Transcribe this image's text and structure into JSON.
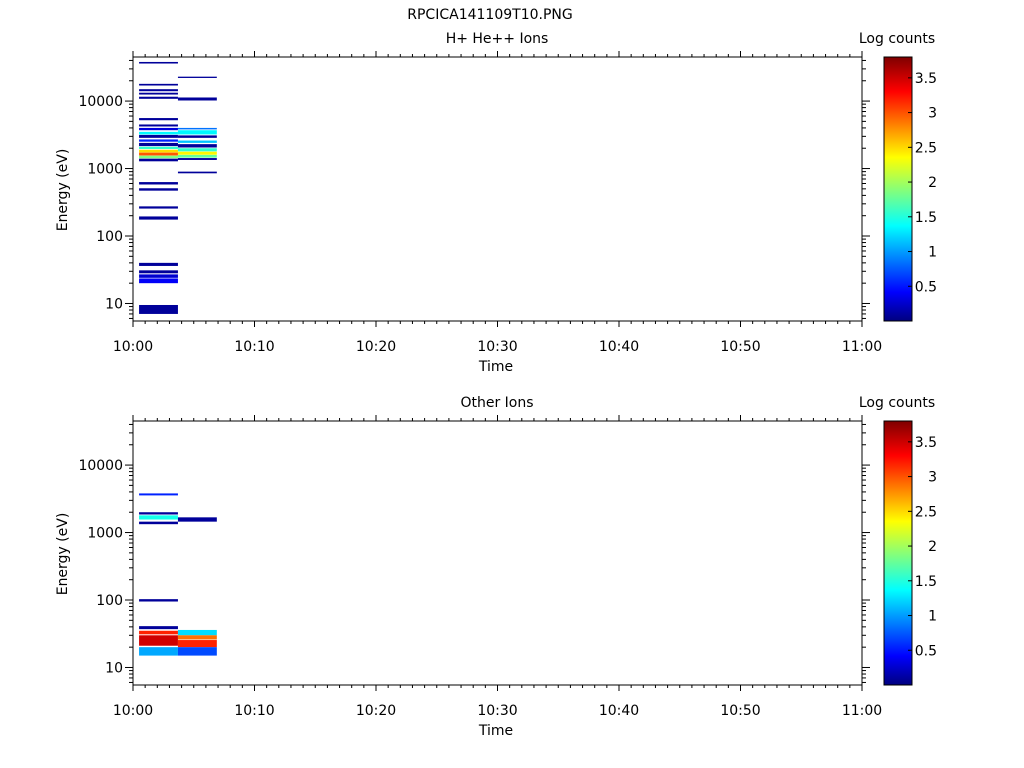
{
  "figure_title": "RPCICA141109T10.PNG",
  "colorbar": {
    "label": "Log counts",
    "range": [
      0,
      3.8
    ],
    "ticks": [
      0.5,
      1,
      1.5,
      2,
      2.5,
      3,
      3.5
    ],
    "tick_labels": [
      "0.5",
      "1",
      "1.5",
      "2",
      "2.5",
      "3",
      "3.5"
    ],
    "colormap": "jet"
  },
  "chart_data": [
    {
      "type": "heatmap",
      "title": "H+ He++ Ions",
      "xlabel": "Time",
      "ylabel": "Energy (eV)",
      "yscale": "log",
      "ylim": [
        5.5,
        45000
      ],
      "xlim": [
        "10:00",
        "11:00"
      ],
      "xticks": [
        0,
        10,
        20,
        30,
        40,
        50,
        60
      ],
      "x_tick_labels": [
        "10:00",
        "10:10",
        "10:20",
        "10:30",
        "10:40",
        "10:50",
        "11:00"
      ],
      "yticks": [
        10,
        100,
        1000,
        10000
      ],
      "y_tick_labels": [
        "10",
        "100",
        "1000",
        "10000"
      ],
      "cells": [
        {
          "t0": 0.5,
          "t1": 3.7,
          "e0": 36000,
          "e1": 38000,
          "v": 0.1
        },
        {
          "t0": 0.5,
          "t1": 3.7,
          "e0": 17000,
          "e1": 18000,
          "v": 0.1
        },
        {
          "t0": 0.5,
          "t1": 3.7,
          "e0": 14000,
          "e1": 15000,
          "v": 0.1
        },
        {
          "t0": 0.5,
          "t1": 3.7,
          "e0": 12500,
          "e1": 13300,
          "v": 0.1
        },
        {
          "t0": 0.5,
          "t1": 3.7,
          "e0": 10800,
          "e1": 11600,
          "v": 0.1
        },
        {
          "t0": 0.5,
          "t1": 3.7,
          "e0": 5200,
          "e1": 5600,
          "v": 0.1
        },
        {
          "t0": 0.5,
          "t1": 3.7,
          "e0": 4200,
          "e1": 4500,
          "v": 0.1
        },
        {
          "t0": 0.5,
          "t1": 3.7,
          "e0": 3700,
          "e1": 4000,
          "v": 0.35
        },
        {
          "t0": 0.5,
          "t1": 3.7,
          "e0": 3200,
          "e1": 3500,
          "v": 1.4
        },
        {
          "t0": 0.5,
          "t1": 3.7,
          "e0": 2850,
          "e1": 3150,
          "v": 0.1
        },
        {
          "t0": 0.5,
          "t1": 3.7,
          "e0": 2500,
          "e1": 2700,
          "v": 0.6
        },
        {
          "t0": 0.5,
          "t1": 3.7,
          "e0": 2150,
          "e1": 2400,
          "v": 0.1
        },
        {
          "t0": 0.5,
          "t1": 3.7,
          "e0": 1950,
          "e1": 2100,
          "v": 1.6
        },
        {
          "t0": 0.5,
          "t1": 3.7,
          "e0": 1730,
          "e1": 1900,
          "v": 2.5
        },
        {
          "t0": 0.5,
          "t1": 3.7,
          "e0": 1560,
          "e1": 1720,
          "v": 3.0
        },
        {
          "t0": 0.5,
          "t1": 3.7,
          "e0": 1420,
          "e1": 1550,
          "v": 1.9
        },
        {
          "t0": 0.5,
          "t1": 3.7,
          "e0": 1280,
          "e1": 1400,
          "v": 0.1
        },
        {
          "t0": 0.5,
          "t1": 3.7,
          "e0": 580,
          "e1": 630,
          "v": 0.1
        },
        {
          "t0": 0.5,
          "t1": 3.7,
          "e0": 470,
          "e1": 510,
          "v": 0.1
        },
        {
          "t0": 0.5,
          "t1": 3.7,
          "e0": 255,
          "e1": 275,
          "v": 0.1
        },
        {
          "t0": 0.5,
          "t1": 3.7,
          "e0": 175,
          "e1": 195,
          "v": 0.1
        },
        {
          "t0": 0.5,
          "t1": 3.7,
          "e0": 36,
          "e1": 40,
          "v": 0.1
        },
        {
          "t0": 0.5,
          "t1": 3.7,
          "e0": 28,
          "e1": 31,
          "v": 0.1
        },
        {
          "t0": 0.5,
          "t1": 3.7,
          "e0": 24,
          "e1": 27,
          "v": 0.3
        },
        {
          "t0": 0.5,
          "t1": 3.7,
          "e0": 20,
          "e1": 23.5,
          "v": 0.45
        },
        {
          "t0": 0.5,
          "t1": 3.7,
          "e0": 7.0,
          "e1": 9.5,
          "v": 0.1
        },
        {
          "t0": 3.7,
          "t1": 6.9,
          "e0": 22000,
          "e1": 23000,
          "v": 0.1
        },
        {
          "t0": 3.7,
          "t1": 6.9,
          "e0": 10200,
          "e1": 11300,
          "v": 0.1
        },
        {
          "t0": 3.7,
          "t1": 6.9,
          "e0": 3800,
          "e1": 4000,
          "v": 0.9
        },
        {
          "t0": 3.7,
          "t1": 6.9,
          "e0": 3200,
          "e1": 3700,
          "v": 1.4
        },
        {
          "t0": 3.7,
          "t1": 6.9,
          "e0": 2850,
          "e1": 3100,
          "v": 0.1
        },
        {
          "t0": 3.7,
          "t1": 6.9,
          "e0": 2400,
          "e1": 2600,
          "v": 1.2
        },
        {
          "t0": 3.7,
          "t1": 6.9,
          "e0": 2050,
          "e1": 2300,
          "v": 0.1
        },
        {
          "t0": 3.7,
          "t1": 6.9,
          "e0": 1800,
          "e1": 2000,
          "v": 1.6
        },
        {
          "t0": 3.7,
          "t1": 6.9,
          "e0": 1600,
          "e1": 1780,
          "v": 2.4
        },
        {
          "t0": 3.7,
          "t1": 6.9,
          "e0": 1450,
          "e1": 1590,
          "v": 1.8
        },
        {
          "t0": 3.7,
          "t1": 6.9,
          "e0": 1340,
          "e1": 1430,
          "v": 0.1
        },
        {
          "t0": 3.7,
          "t1": 6.9,
          "e0": 850,
          "e1": 900,
          "v": 0.1
        }
      ]
    },
    {
      "type": "heatmap",
      "title": "Other Ions",
      "xlabel": "Time",
      "ylabel": "Energy (eV)",
      "yscale": "log",
      "ylim": [
        5.5,
        45000
      ],
      "xlim": [
        "10:00",
        "11:00"
      ],
      "xticks": [
        0,
        10,
        20,
        30,
        40,
        50,
        60
      ],
      "x_tick_labels": [
        "10:00",
        "10:10",
        "10:20",
        "10:30",
        "10:40",
        "10:50",
        "11:00"
      ],
      "yticks": [
        10,
        100,
        1000,
        10000
      ],
      "y_tick_labels": [
        "10",
        "100",
        "1000",
        "10000"
      ],
      "cells": [
        {
          "t0": 0.5,
          "t1": 3.7,
          "e0": 3550,
          "e1": 3800,
          "v": 0.6
        },
        {
          "t0": 0.5,
          "t1": 3.7,
          "e0": 1850,
          "e1": 2000,
          "v": 0.1
        },
        {
          "t0": 0.5,
          "t1": 3.7,
          "e0": 1560,
          "e1": 1800,
          "v": 1.5
        },
        {
          "t0": 0.5,
          "t1": 3.7,
          "e0": 1330,
          "e1": 1450,
          "v": 0.1
        },
        {
          "t0": 0.5,
          "t1": 3.7,
          "e0": 95,
          "e1": 103,
          "v": 0.1
        },
        {
          "t0": 0.5,
          "t1": 3.7,
          "e0": 37,
          "e1": 41,
          "v": 0.1
        },
        {
          "t0": 0.5,
          "t1": 3.7,
          "e0": 31,
          "e1": 35,
          "v": 3.2
        },
        {
          "t0": 0.5,
          "t1": 3.7,
          "e0": 21,
          "e1": 30,
          "v": 3.5
        },
        {
          "t0": 0.5,
          "t1": 3.7,
          "e0": 15,
          "e1": 20,
          "v": 1.1
        },
        {
          "t0": 3.7,
          "t1": 6.9,
          "e0": 1450,
          "e1": 1680,
          "v": 0.1
        },
        {
          "t0": 3.7,
          "t1": 6.9,
          "e0": 30,
          "e1": 36,
          "v": 1.3
        },
        {
          "t0": 3.7,
          "t1": 6.9,
          "e0": 26,
          "e1": 30,
          "v": 2.9
        },
        {
          "t0": 3.7,
          "t1": 6.9,
          "e0": 20,
          "e1": 25.5,
          "v": 3.2
        },
        {
          "t0": 3.7,
          "t1": 6.9,
          "e0": 15,
          "e1": 20,
          "v": 0.75
        }
      ]
    }
  ]
}
